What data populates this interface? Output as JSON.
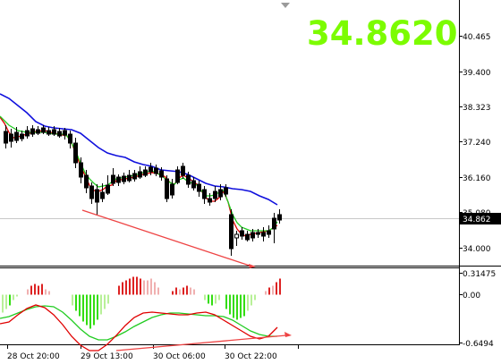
{
  "current_price_big": "34.8620",
  "current_price_tag": "34.862",
  "price_axis": [
    "40.465",
    "39.400",
    "38.323",
    "37.240",
    "36.160",
    "35.080",
    "34.000"
  ],
  "osc_axis": [
    "0.31475",
    "0.00",
    "-0.6494"
  ],
  "time_axis": [
    "28 Oct 20:00",
    "29 Oct 13:00",
    "30 Oct 06:00",
    "30 Oct 22:00"
  ],
  "colors": {
    "bull_candle": "#ffffff",
    "bear_candle": "#000000",
    "ma_fast": "#e00000",
    "ma_mid": "#22cc22",
    "ma_slow": "#1010dd",
    "divergence": "#ee4444",
    "hist_pos": "#dd2222",
    "hist_pos_light": "#f0b0b0",
    "hist_neg": "#33dd11",
    "hist_neg_light": "#b8f098",
    "big_price": "#7CFC00"
  }
}
